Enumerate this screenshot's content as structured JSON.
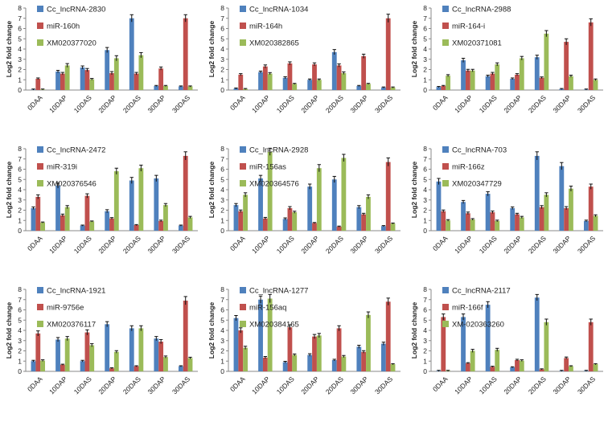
{
  "colors": {
    "series1": "#4F81BD",
    "series2": "#C0504D",
    "series3": "#9BBB59",
    "axis": "#888888",
    "error": "#111111"
  },
  "chart_data": [
    {
      "type": "bar",
      "ylabel": "Log2 fold change",
      "ylim": [
        0,
        8
      ],
      "yticks": [
        0,
        1,
        2,
        3,
        4,
        5,
        6,
        7,
        8
      ],
      "categories": [
        "0DAA",
        "10DAP",
        "10DAS",
        "20DAP",
        "20DAS",
        "30DAP",
        "30DAS"
      ],
      "series": [
        {
          "name": "Cc_lncRNA-2830",
          "values": [
            0.05,
            1.8,
            2.2,
            3.9,
            7.0,
            0.4,
            0.35
          ],
          "errors": [
            0.05,
            0.12,
            0.15,
            0.25,
            0.35,
            0.05,
            0.05
          ]
        },
        {
          "name": "miR-160h",
          "values": [
            1.1,
            1.6,
            1.95,
            1.65,
            1.6,
            2.1,
            7.0
          ],
          "errors": [
            0.08,
            0.12,
            0.15,
            0.15,
            0.12,
            0.15,
            0.35
          ]
        },
        {
          "name": "XM020377020",
          "values": [
            0.05,
            2.4,
            1.05,
            3.1,
            3.4,
            0.4,
            0.35
          ],
          "errors": [
            0.05,
            0.18,
            0.08,
            0.25,
            0.25,
            0.05,
            0.05
          ]
        }
      ]
    },
    {
      "type": "bar",
      "ylabel": "Log2 fold change",
      "ylim": [
        0,
        8
      ],
      "yticks": [
        0,
        1,
        2,
        3,
        4,
        5,
        6,
        7,
        8
      ],
      "categories": [
        "0DAA",
        "10DAP",
        "10DAS",
        "20DAP",
        "20DAS",
        "30DAP",
        "30DAS"
      ],
      "series": [
        {
          "name": "Cc_lncRNA-1034",
          "values": [
            0.15,
            1.75,
            1.2,
            1.0,
            3.7,
            0.4,
            0.25
          ],
          "errors": [
            0.05,
            0.1,
            0.1,
            0.08,
            0.25,
            0.05,
            0.05
          ]
        },
        {
          "name": "miR-164h",
          "values": [
            1.5,
            2.3,
            2.6,
            2.5,
            2.4,
            3.3,
            7.0
          ],
          "errors": [
            0.1,
            0.15,
            0.15,
            0.15,
            0.15,
            0.2,
            0.4
          ]
        },
        {
          "name": "XM020382865",
          "values": [
            0.1,
            1.6,
            0.6,
            1.0,
            1.65,
            0.6,
            0.25
          ],
          "errors": [
            0.05,
            0.1,
            0.05,
            0.08,
            0.12,
            0.05,
            0.05
          ]
        }
      ]
    },
    {
      "type": "bar",
      "ylabel": "Log2 fold change",
      "ylim": [
        0,
        8
      ],
      "yticks": [
        0,
        1,
        2,
        3,
        4,
        5,
        6,
        7,
        8
      ],
      "categories": [
        "0DAA",
        "10DAP",
        "10DAS",
        "20DAP",
        "20DAS",
        "30DAP",
        "30DAS"
      ],
      "series": [
        {
          "name": "Cc_lncRNA-2988",
          "values": [
            0.3,
            2.9,
            1.35,
            1.1,
            3.2,
            0.1,
            0.05
          ],
          "errors": [
            0.05,
            0.2,
            0.1,
            0.08,
            0.2,
            0.05,
            0.05
          ]
        },
        {
          "name": "miR-164-i",
          "values": [
            0.4,
            1.9,
            1.6,
            1.5,
            1.2,
            4.7,
            6.6
          ],
          "errors": [
            0.05,
            0.12,
            0.12,
            0.1,
            0.08,
            0.3,
            0.35
          ]
        },
        {
          "name": "XM020371081",
          "values": [
            1.4,
            1.9,
            2.5,
            3.1,
            5.5,
            1.35,
            1.0
          ],
          "errors": [
            0.1,
            0.12,
            0.15,
            0.18,
            0.3,
            0.1,
            0.08
          ]
        }
      ]
    },
    {
      "type": "bar",
      "ylabel": "Log2 fold change",
      "ylim": [
        0,
        8
      ],
      "yticks": [
        0,
        1,
        2,
        3,
        4,
        5,
        6,
        7,
        8
      ],
      "categories": [
        "0DAA",
        "10DAP",
        "10DAS",
        "20DAP",
        "20DAS",
        "30DAP",
        "30DAS"
      ],
      "series": [
        {
          "name": "Cc_lncRNA-2472",
          "values": [
            2.2,
            4.4,
            0.5,
            1.9,
            4.9,
            5.1,
            0.5
          ],
          "errors": [
            0.12,
            0.25,
            0.05,
            0.15,
            0.3,
            0.3,
            0.05
          ]
        },
        {
          "name": "miR-319i",
          "values": [
            3.3,
            1.5,
            3.4,
            1.2,
            0.55,
            0.95,
            7.3
          ],
          "errors": [
            0.2,
            0.12,
            0.2,
            0.08,
            0.05,
            0.08,
            0.4
          ]
        },
        {
          "name": "XM020376546",
          "values": [
            0.8,
            2.3,
            0.9,
            5.8,
            6.1,
            2.5,
            1.3
          ],
          "errors": [
            0.05,
            0.15,
            0.05,
            0.3,
            0.3,
            0.15,
            0.1
          ]
        }
      ]
    },
    {
      "type": "bar",
      "ylabel": "Log2 fold change",
      "ylim": [
        0,
        8
      ],
      "yticks": [
        0,
        1,
        2,
        3,
        4,
        5,
        6,
        7,
        8
      ],
      "categories": [
        "0DAA",
        "10DAP",
        "10DAS",
        "20DAP",
        "20DAS",
        "30DAP",
        "30DAS"
      ],
      "series": [
        {
          "name": "Cc_lncRNA-2928",
          "values": [
            2.5,
            5.1,
            1.15,
            4.3,
            5.0,
            2.3,
            0.45
          ],
          "errors": [
            0.15,
            0.3,
            0.1,
            0.25,
            0.3,
            0.15,
            0.05
          ]
        },
        {
          "name": "miR-156as",
          "values": [
            1.9,
            1.2,
            2.2,
            0.75,
            0.4,
            1.6,
            6.7
          ],
          "errors": [
            0.12,
            0.1,
            0.15,
            0.05,
            0.05,
            0.1,
            0.4
          ]
        },
        {
          "name": "XM020364576",
          "values": [
            3.5,
            7.7,
            1.8,
            6.1,
            7.1,
            3.3,
            0.7
          ],
          "errors": [
            0.2,
            0.35,
            0.1,
            0.35,
            0.35,
            0.2,
            0.05
          ]
        }
      ]
    },
    {
      "type": "bar",
      "ylabel": "Log2 fold change",
      "ylim": [
        0,
        8
      ],
      "yticks": [
        0,
        1,
        2,
        3,
        4,
        5,
        6,
        7,
        8
      ],
      "categories": [
        "0DAA",
        "10DAP",
        "10DAS",
        "20DAP",
        "20DAS",
        "30DAP",
        "30DAS"
      ],
      "series": [
        {
          "name": "Cc_lncRNA-703",
          "values": [
            4.8,
            2.8,
            3.6,
            2.2,
            7.3,
            6.3,
            0.95
          ],
          "errors": [
            0.3,
            0.15,
            0.2,
            0.12,
            0.4,
            0.35,
            0.08
          ]
        },
        {
          "name": "miR-166z",
          "values": [
            1.9,
            1.7,
            1.8,
            1.6,
            2.3,
            2.2,
            4.3
          ],
          "errors": [
            0.12,
            0.12,
            0.12,
            0.1,
            0.15,
            0.15,
            0.25
          ]
        },
        {
          "name": "XM020347729",
          "values": [
            1.0,
            1.1,
            0.95,
            1.3,
            3.5,
            4.1,
            1.45
          ],
          "errors": [
            0.08,
            0.08,
            0.08,
            0.1,
            0.2,
            0.25,
            0.1
          ]
        }
      ]
    },
    {
      "type": "bar",
      "ylabel": "Log2 fold change",
      "ylim": [
        0,
        8
      ],
      "yticks": [
        0,
        1,
        2,
        3,
        4,
        5,
        6,
        7,
        8
      ],
      "categories": [
        "0DAA",
        "10DAP",
        "10DAS",
        "20DAP",
        "20DAS",
        "30DAP",
        "30DAS"
      ],
      "series": [
        {
          "name": "Cc_lncRNA-1921",
          "values": [
            1.0,
            3.1,
            1.0,
            4.6,
            4.2,
            3.2,
            0.5
          ],
          "errors": [
            0.08,
            0.2,
            0.08,
            0.25,
            0.25,
            0.2,
            0.05
          ]
        },
        {
          "name": "miR-9756e",
          "values": [
            3.7,
            0.65,
            3.8,
            0.3,
            0.5,
            2.9,
            6.9
          ],
          "errors": [
            0.25,
            0.05,
            0.25,
            0.05,
            0.05,
            0.2,
            0.4
          ]
        },
        {
          "name": "XM020376117",
          "values": [
            1.05,
            3.2,
            2.55,
            1.9,
            4.2,
            1.4,
            1.3
          ],
          "errors": [
            0.08,
            0.2,
            0.15,
            0.12,
            0.25,
            0.1,
            0.08
          ]
        }
      ]
    },
    {
      "type": "bar",
      "ylabel": "Log2 fold change",
      "ylim": [
        0,
        8
      ],
      "yticks": [
        0,
        1,
        2,
        3,
        4,
        5,
        6,
        7,
        8
      ],
      "categories": [
        "0DAA",
        "10DAP",
        "10DAS",
        "20DAP",
        "20DAS",
        "30DAP",
        "30DAS"
      ],
      "series": [
        {
          "name": "Cc_lncRNA-1277",
          "values": [
            5.2,
            7.0,
            0.9,
            1.6,
            1.1,
            2.4,
            2.7
          ],
          "errors": [
            0.25,
            0.35,
            0.08,
            0.12,
            0.08,
            0.15,
            0.15
          ]
        },
        {
          "name": "miR-156aq",
          "values": [
            4.0,
            1.35,
            4.3,
            3.4,
            4.2,
            1.9,
            6.8
          ],
          "errors": [
            0.25,
            0.1,
            0.25,
            0.2,
            0.25,
            0.12,
            0.35
          ]
        },
        {
          "name": "XM020384165",
          "values": [
            2.3,
            7.1,
            1.6,
            3.5,
            1.45,
            5.5,
            0.7
          ],
          "errors": [
            0.15,
            0.4,
            0.1,
            0.2,
            0.1,
            0.3,
            0.05
          ]
        }
      ]
    },
    {
      "type": "bar",
      "ylabel": "Log2 fold change",
      "ylim": [
        0,
        8
      ],
      "yticks": [
        0,
        1,
        2,
        3,
        4,
        5,
        6,
        7,
        8
      ],
      "categories": [
        "0DAA",
        "10DAP",
        "10DAS",
        "20DAP",
        "20DAS",
        "30DAP",
        "30DAS"
      ],
      "series": [
        {
          "name": "Cc_lncRNA-2117",
          "values": [
            0.05,
            5.3,
            6.5,
            0.4,
            7.2,
            0.05,
            0.05
          ],
          "errors": [
            0.05,
            0.3,
            0.3,
            0.05,
            0.3,
            0.05,
            0.05
          ]
        },
        {
          "name": "miR-166f",
          "values": [
            5.3,
            0.8,
            0.45,
            1.1,
            0.2,
            1.3,
            4.8
          ],
          "errors": [
            0.3,
            0.05,
            0.05,
            0.08,
            0.05,
            0.1,
            0.3
          ]
        },
        {
          "name": "XM-020363260",
          "values": [
            0.05,
            2.0,
            2.1,
            1.05,
            4.8,
            0.5,
            0.7
          ],
          "errors": [
            0.05,
            0.15,
            0.15,
            0.08,
            0.3,
            0.05,
            0.05
          ]
        }
      ]
    }
  ]
}
